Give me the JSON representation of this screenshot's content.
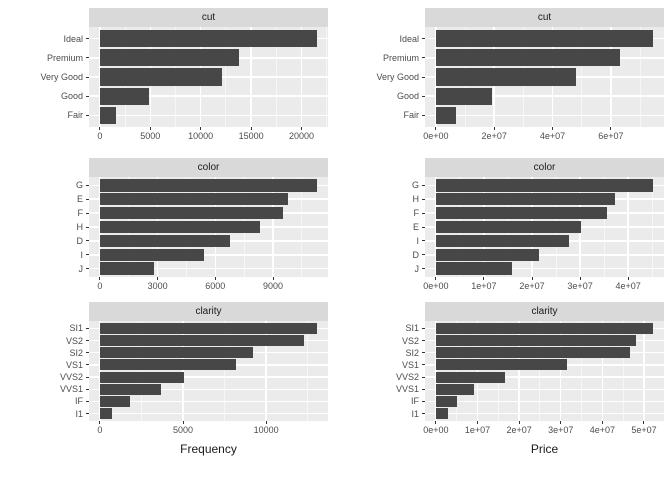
{
  "theme": {
    "page_bg": "#ffffff",
    "panel_bg": "#EBEBEB",
    "strip_bg": "#D9D9D9",
    "bar_fill": "#474747",
    "grid_major": "#FFFFFF",
    "grid_minor": "rgba(255,255,255,0.55)",
    "axis_text": "#4D4D4D",
    "strip_text": "#1A1A1A",
    "title_text": "#1A1A1A",
    "tick_color": "#333333"
  },
  "chart_data": [
    {
      "id": "cut-frequency",
      "type": "bar",
      "orientation": "horizontal",
      "title": "cut",
      "categories": [
        "Ideal",
        "Premium",
        "Very Good",
        "Good",
        "Fair"
      ],
      "values": [
        21551,
        13791,
        12082,
        4906,
        1610
      ],
      "x_ticks": [
        0,
        5000,
        10000,
        15000,
        20000
      ],
      "x_tick_labels": [
        "0",
        "5000",
        "10000",
        "15000",
        "20000"
      ],
      "xlabel": "",
      "grid": true,
      "legend": false
    },
    {
      "id": "cut-price",
      "type": "bar",
      "orientation": "horizontal",
      "title": "cut",
      "categories": [
        "Ideal",
        "Premium",
        "Very Good",
        "Good",
        "Fair"
      ],
      "values": [
        74500000,
        63200000,
        48100000,
        19300000,
        7000000
      ],
      "x_ticks": [
        0,
        20000000,
        40000000,
        60000000
      ],
      "x_tick_labels": [
        "0e+00",
        "2e+07",
        "4e+07",
        "6e+07"
      ],
      "xlabel": "",
      "grid": true,
      "legend": false
    },
    {
      "id": "color-frequency",
      "type": "bar",
      "orientation": "horizontal",
      "title": "color",
      "categories": [
        "G",
        "E",
        "F",
        "H",
        "D",
        "I",
        "J"
      ],
      "values": [
        11292,
        9797,
        9542,
        8304,
        6775,
        5422,
        2808
      ],
      "x_ticks": [
        0,
        3000,
        6000,
        9000
      ],
      "x_tick_labels": [
        "0",
        "3000",
        "6000",
        "9000"
      ],
      "xlabel": "",
      "grid": true,
      "legend": false
    },
    {
      "id": "color-price",
      "type": "bar",
      "orientation": "horizontal",
      "title": "color",
      "categories": [
        "G",
        "H",
        "F",
        "E",
        "I",
        "D",
        "J"
      ],
      "values": [
        45200000,
        37300000,
        35500000,
        30100000,
        27600000,
        21500000,
        15900000
      ],
      "x_ticks": [
        0,
        10000000,
        20000000,
        30000000,
        40000000
      ],
      "x_tick_labels": [
        "0e+00",
        "1e+07",
        "2e+07",
        "3e+07",
        "4e+07"
      ],
      "xlabel": "",
      "grid": true,
      "legend": false
    },
    {
      "id": "clarity-frequency",
      "type": "bar",
      "orientation": "horizontal",
      "title": "clarity",
      "categories": [
        "SI1",
        "VS2",
        "SI2",
        "VS1",
        "VVS2",
        "VVS1",
        "IF",
        "I1"
      ],
      "values": [
        13065,
        12258,
        9194,
        8171,
        5066,
        3655,
        1790,
        741
      ],
      "x_ticks": [
        0,
        5000,
        10000
      ],
      "x_tick_labels": [
        "0",
        "5000",
        "10000"
      ],
      "xlabel": "Frequency",
      "grid": true,
      "legend": false
    },
    {
      "id": "clarity-price",
      "type": "bar",
      "orientation": "horizontal",
      "title": "clarity",
      "categories": [
        "SI1",
        "VS2",
        "SI2",
        "VS1",
        "VVS2",
        "VVS1",
        "IF",
        "I1"
      ],
      "values": [
        52200000,
        48100000,
        46600000,
        31400000,
        16600000,
        9200000,
        5100000,
        2900000
      ],
      "x_ticks": [
        0,
        10000000,
        20000000,
        30000000,
        40000000,
        50000000
      ],
      "x_tick_labels": [
        "0e+00",
        "1e+07",
        "2e+07",
        "3e+07",
        "4e+07",
        "5e+07"
      ],
      "xlabel": "Price",
      "grid": true,
      "legend": false
    }
  ]
}
